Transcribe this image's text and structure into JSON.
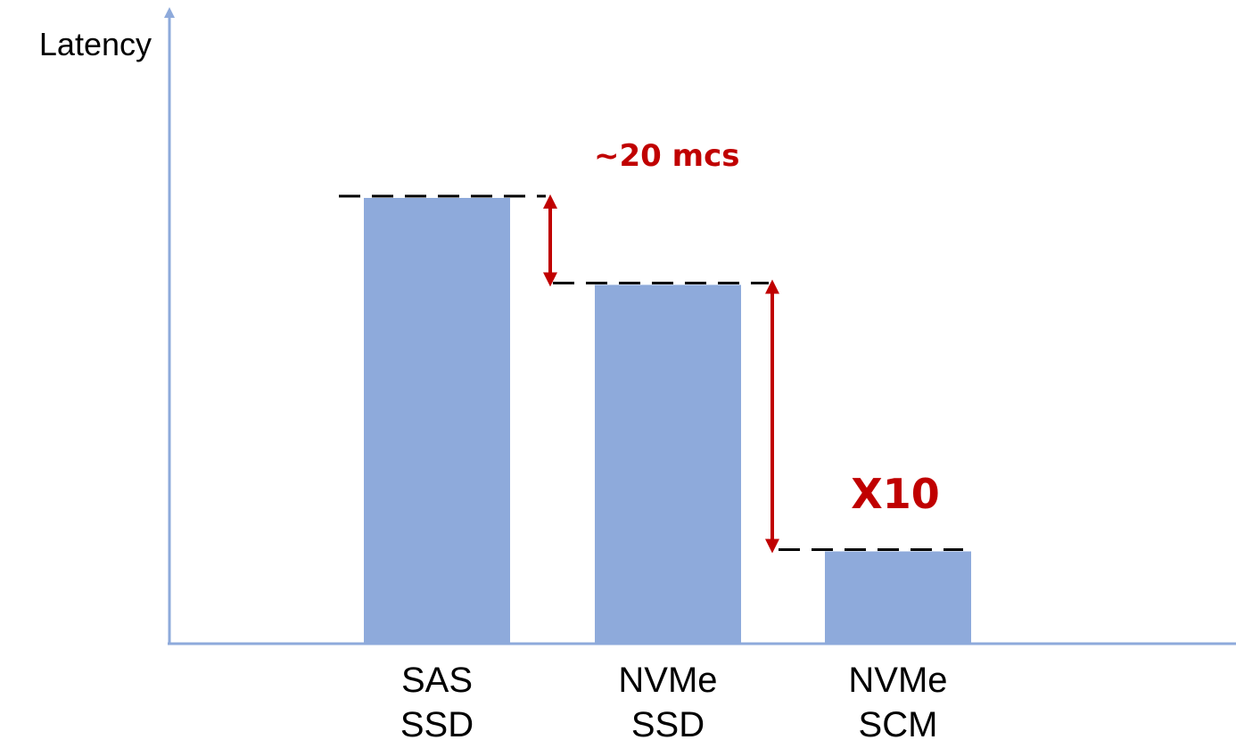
{
  "chart_data": {
    "type": "bar",
    "categories": [
      "SAS\nSSD",
      "NVMe\nSSD",
      "NVMe\nSCM"
    ],
    "values": [
      100,
      80.5,
      20.7
    ],
    "ylabel": "Latency",
    "xlabel": "",
    "ylim": [
      0,
      120
    ],
    "grid": false,
    "annotations": [
      {
        "text": "~20 mcs",
        "from_category": 0,
        "to_category": 1
      },
      {
        "text": "X10",
        "from_category": 1,
        "to_category": 2
      }
    ],
    "colors": {
      "bar": "#8eaadb",
      "axis": "#8eaadb",
      "annotation": "#c00000",
      "dash": "#000000"
    }
  }
}
